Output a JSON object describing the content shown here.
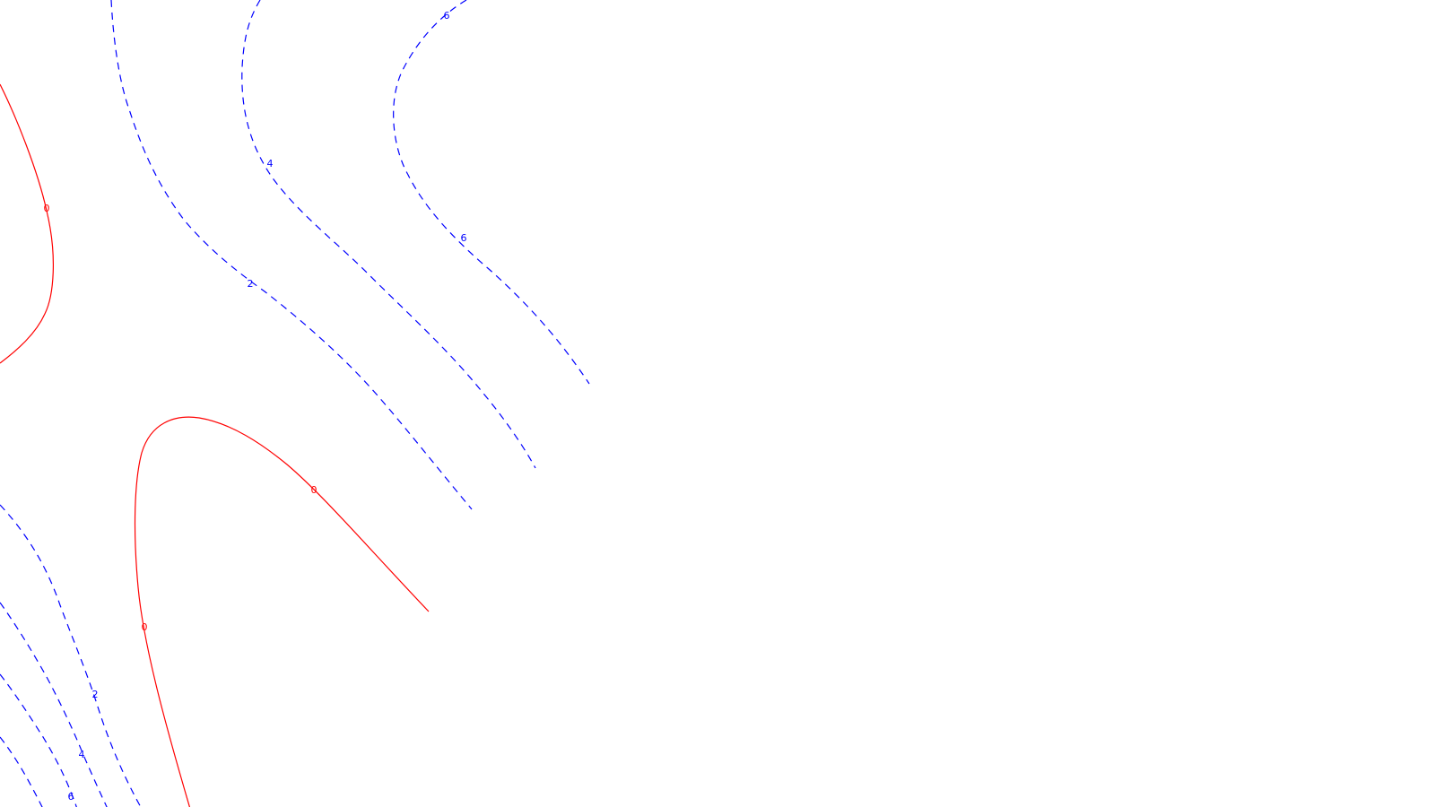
{
  "chart_data": {
    "type": "contour",
    "colors": {
      "positive": "#0000ff",
      "zero": "#ff0000",
      "background": "#ffffff"
    },
    "line_styles": {
      "positive": "dashed",
      "zero": "solid"
    },
    "levels": [
      0,
      2,
      4,
      6
    ],
    "contour_labels": [
      "6",
      "4",
      "0",
      "6",
      "2",
      "0",
      "0",
      "2",
      "4",
      "6"
    ]
  }
}
